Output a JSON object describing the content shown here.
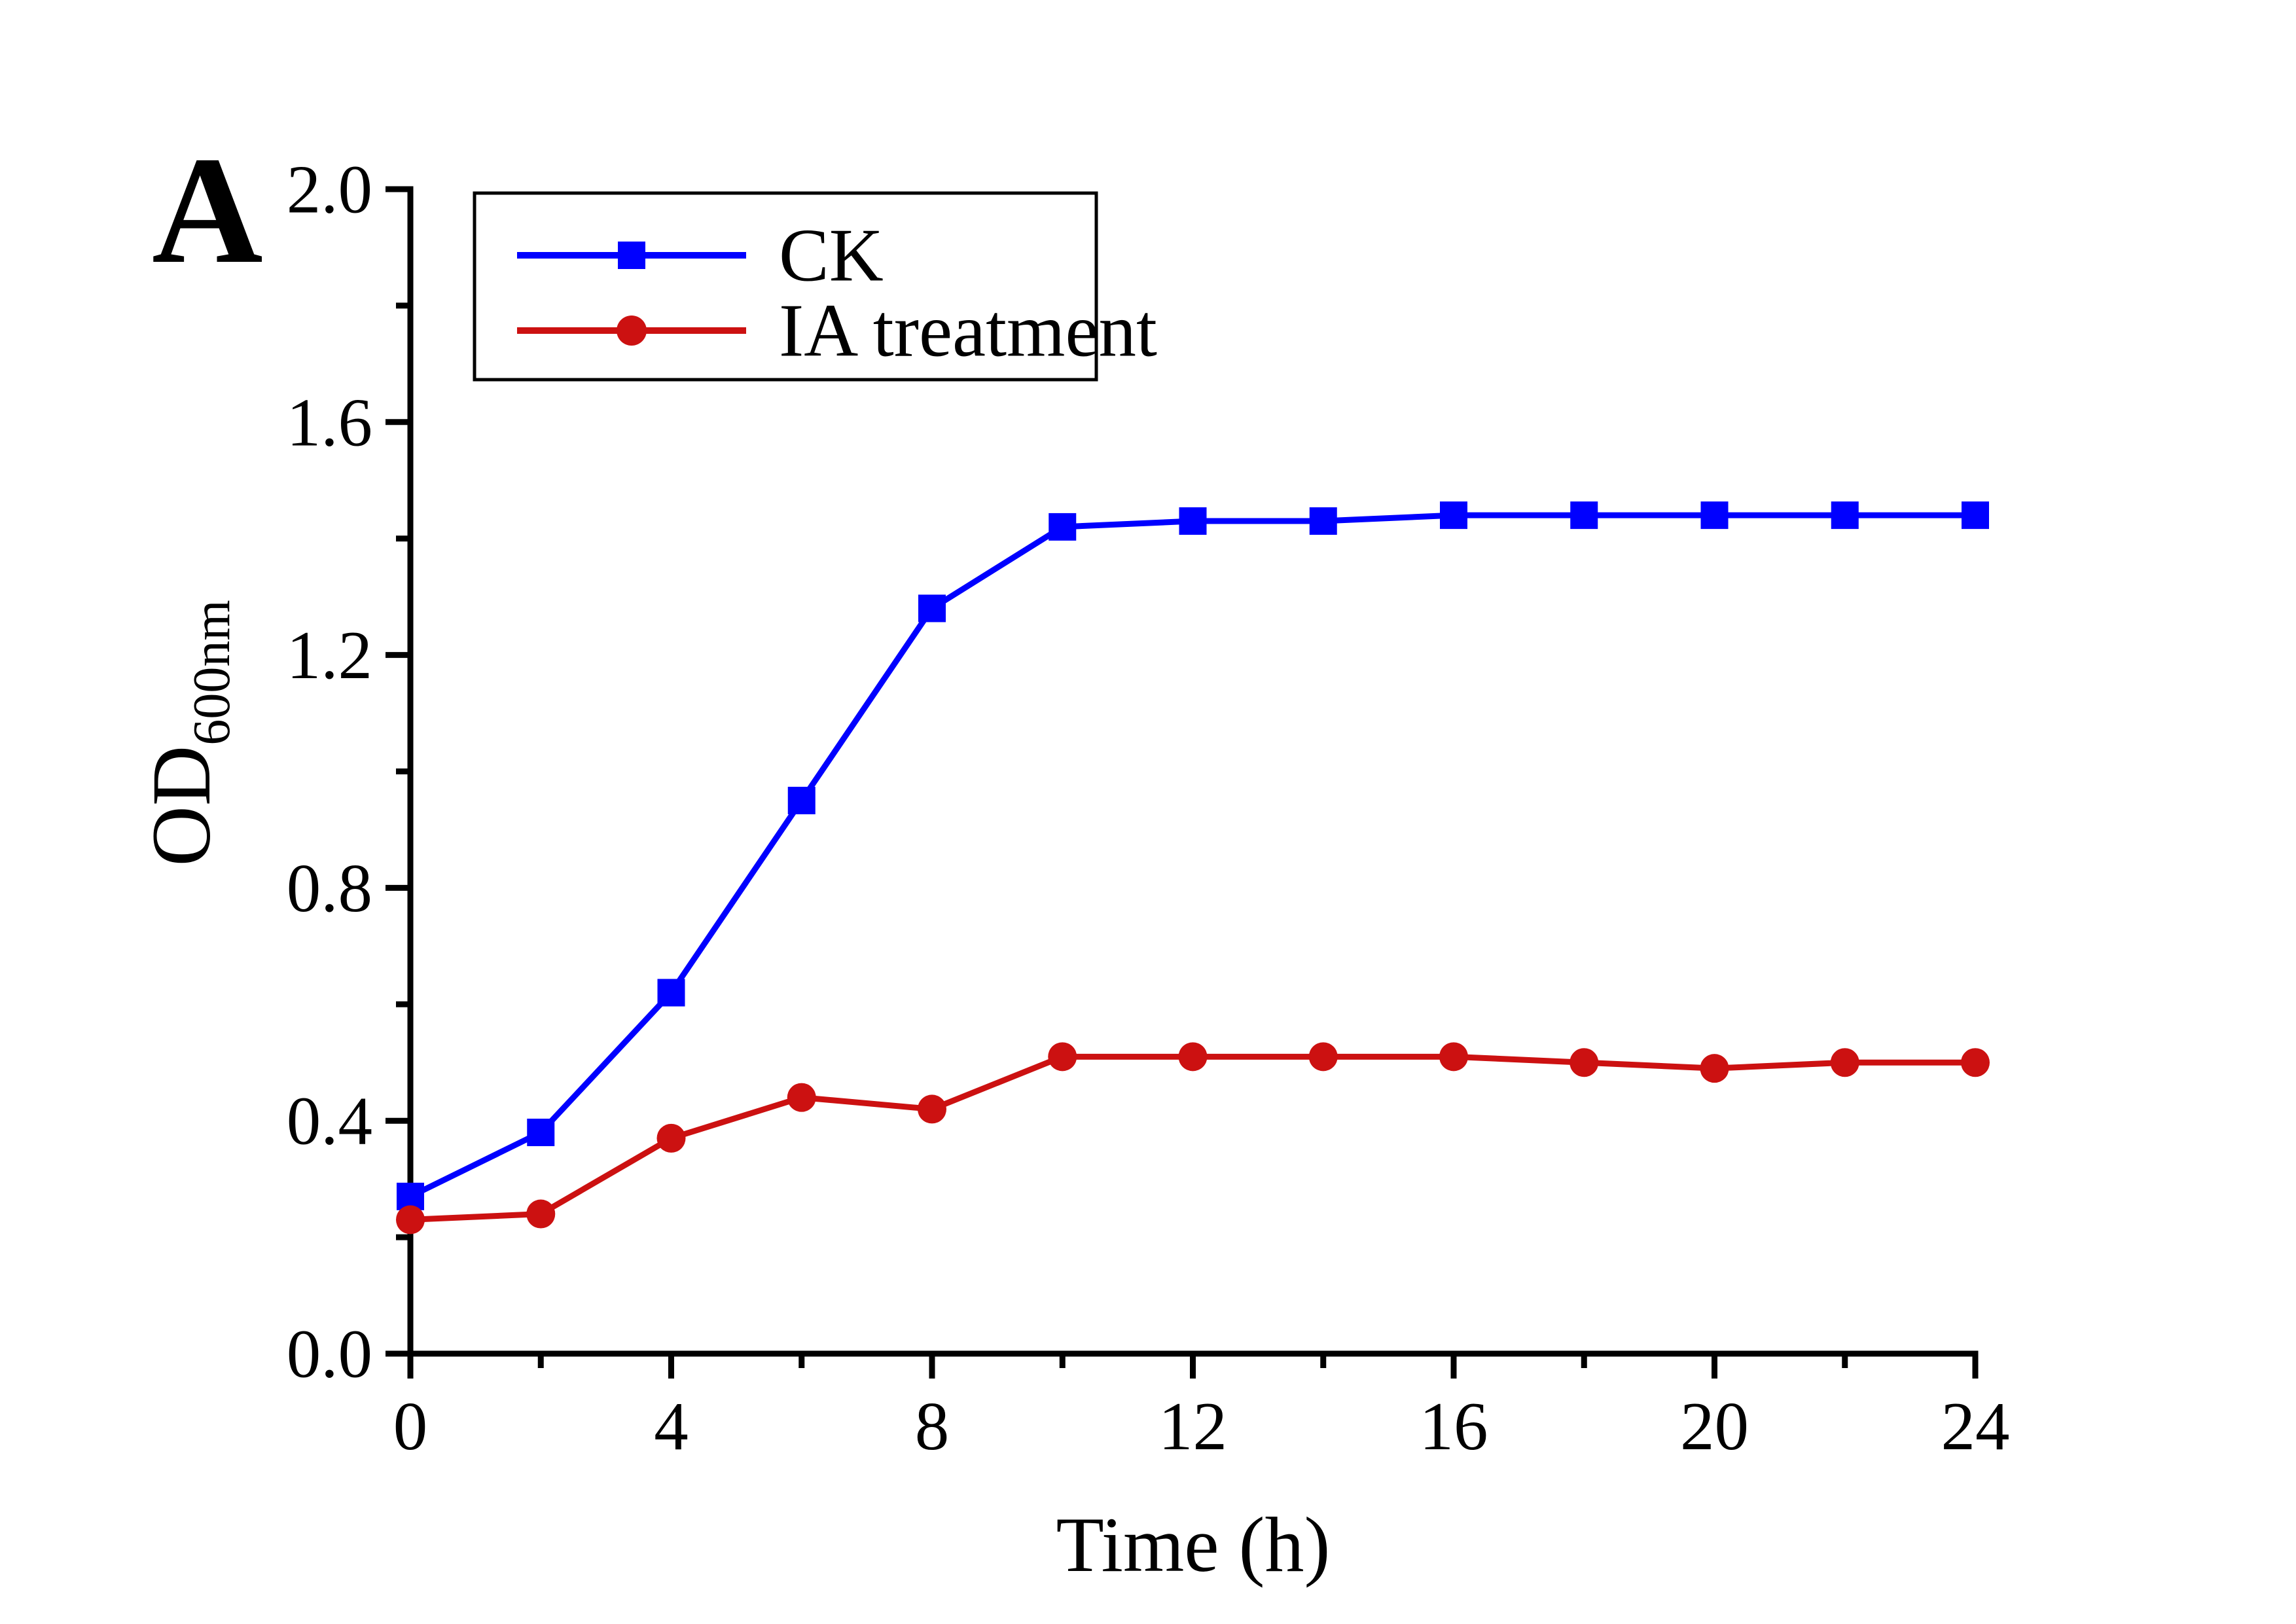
{
  "panel_label": "A",
  "colors": {
    "ck_blue": "#0000FF",
    "ia_red": "#CC1111",
    "axis_black": "#000000",
    "background": "#FFFFFF"
  },
  "legend": {
    "entries": [
      "CK",
      "IA treatment"
    ]
  },
  "chart_data": {
    "type": "line",
    "title": "",
    "xlabel": "Time (h)",
    "ylabel_main": "OD",
    "ylabel_sub": "600nm",
    "xlim": [
      0,
      24
    ],
    "ylim": [
      0.0,
      2.0
    ],
    "grid": false,
    "legend_position": "top-left",
    "x": [
      0,
      2,
      4,
      6,
      8,
      10,
      12,
      14,
      16,
      18,
      20,
      22,
      24
    ],
    "series": [
      {
        "name": "CK",
        "color": "#0000FF",
        "marker": "square",
        "values": [
          0.27,
          0.38,
          0.62,
          0.95,
          1.28,
          1.42,
          1.43,
          1.43,
          1.44,
          1.44,
          1.44,
          1.44,
          1.44
        ]
      },
      {
        "name": "IA treatment",
        "color": "#CC1111",
        "marker": "circle",
        "values": [
          0.23,
          0.24,
          0.37,
          0.44,
          0.42,
          0.51,
          0.51,
          0.51,
          0.51,
          0.5,
          0.49,
          0.5,
          0.5
        ]
      }
    ],
    "x_major_ticks": [
      0,
      4,
      8,
      12,
      16,
      20,
      24
    ],
    "x_major_tick_labels": [
      "0",
      "4",
      "8",
      "12",
      "16",
      "20",
      "24"
    ],
    "x_minor_ticks": [
      2,
      6,
      10,
      14,
      18,
      22
    ],
    "y_major_ticks": [
      0.0,
      0.4,
      0.8,
      1.2,
      1.6,
      2.0
    ],
    "y_major_tick_labels": [
      "0.0",
      "0.4",
      "0.8",
      "1.2",
      "1.6",
      "2.0"
    ],
    "y_minor_ticks": [
      0.2,
      0.6,
      1.0,
      1.4,
      1.8
    ]
  }
}
